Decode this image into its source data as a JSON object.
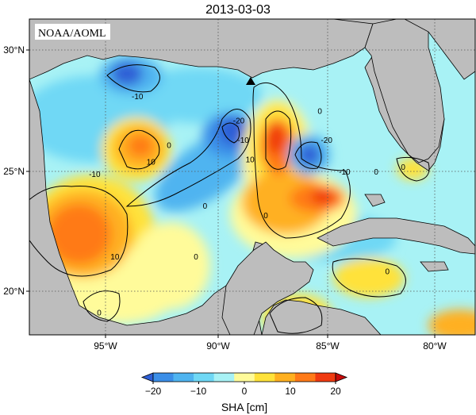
{
  "title": "2013-03-03",
  "credit": "NOAA/AOML",
  "lon_ticks": [
    "95°W",
    "90°W",
    "85°W",
    "80°W"
  ],
  "lat_ticks": [
    "30°N",
    "25°N",
    "20°N"
  ],
  "colorbar": {
    "label": "SHA [cm]",
    "ticks": [
      "−20",
      "−10",
      "0",
      "10",
      "20"
    ],
    "colors": [
      "#2e5fd6",
      "#3b8ee8",
      "#4fb4f0",
      "#6fd8f5",
      "#a8f2f5",
      "#fffb9a",
      "#ffe23a",
      "#ffb020",
      "#ff7a18",
      "#f03a10",
      "#c80a0a"
    ]
  },
  "contour_labels": [
    {
      "text": "-10",
      "lon": -88.9,
      "lat": 26.1
    },
    {
      "text": "-20",
      "lon": -89.1,
      "lat": 26.9
    },
    {
      "text": "10",
      "lon": -88.6,
      "lat": 25.3
    },
    {
      "text": "0",
      "lon": -87.9,
      "lat": 23.0
    },
    {
      "text": "0",
      "lon": -90.6,
      "lat": 23.4
    },
    {
      "text": "0",
      "lon": -91.0,
      "lat": 21.3
    },
    {
      "text": "-10",
      "lon": -95.5,
      "lat": 24.7
    },
    {
      "text": "10",
      "lon": -93.0,
      "lat": 25.2
    },
    {
      "text": "0",
      "lon": -92.2,
      "lat": 25.9
    },
    {
      "text": "-10",
      "lon": -93.6,
      "lat": 27.9
    },
    {
      "text": "10",
      "lon": -94.6,
      "lat": 21.3
    },
    {
      "text": "0",
      "lon": -95.3,
      "lat": 19.0
    },
    {
      "text": "-20",
      "lon": -85.2,
      "lat": 26.1
    },
    {
      "text": "-10",
      "lon": -84.4,
      "lat": 24.8
    },
    {
      "text": "0",
      "lon": -85.5,
      "lat": 27.3
    },
    {
      "text": "0",
      "lon": -83.0,
      "lat": 24.8
    },
    {
      "text": "0",
      "lon": -82.5,
      "lat": 20.7
    },
    {
      "text": "0",
      "lon": -81.8,
      "lat": 25.0
    }
  ],
  "marker": {
    "name": "station-marker",
    "lon": -88.2,
    "lat": 28.5
  }
}
